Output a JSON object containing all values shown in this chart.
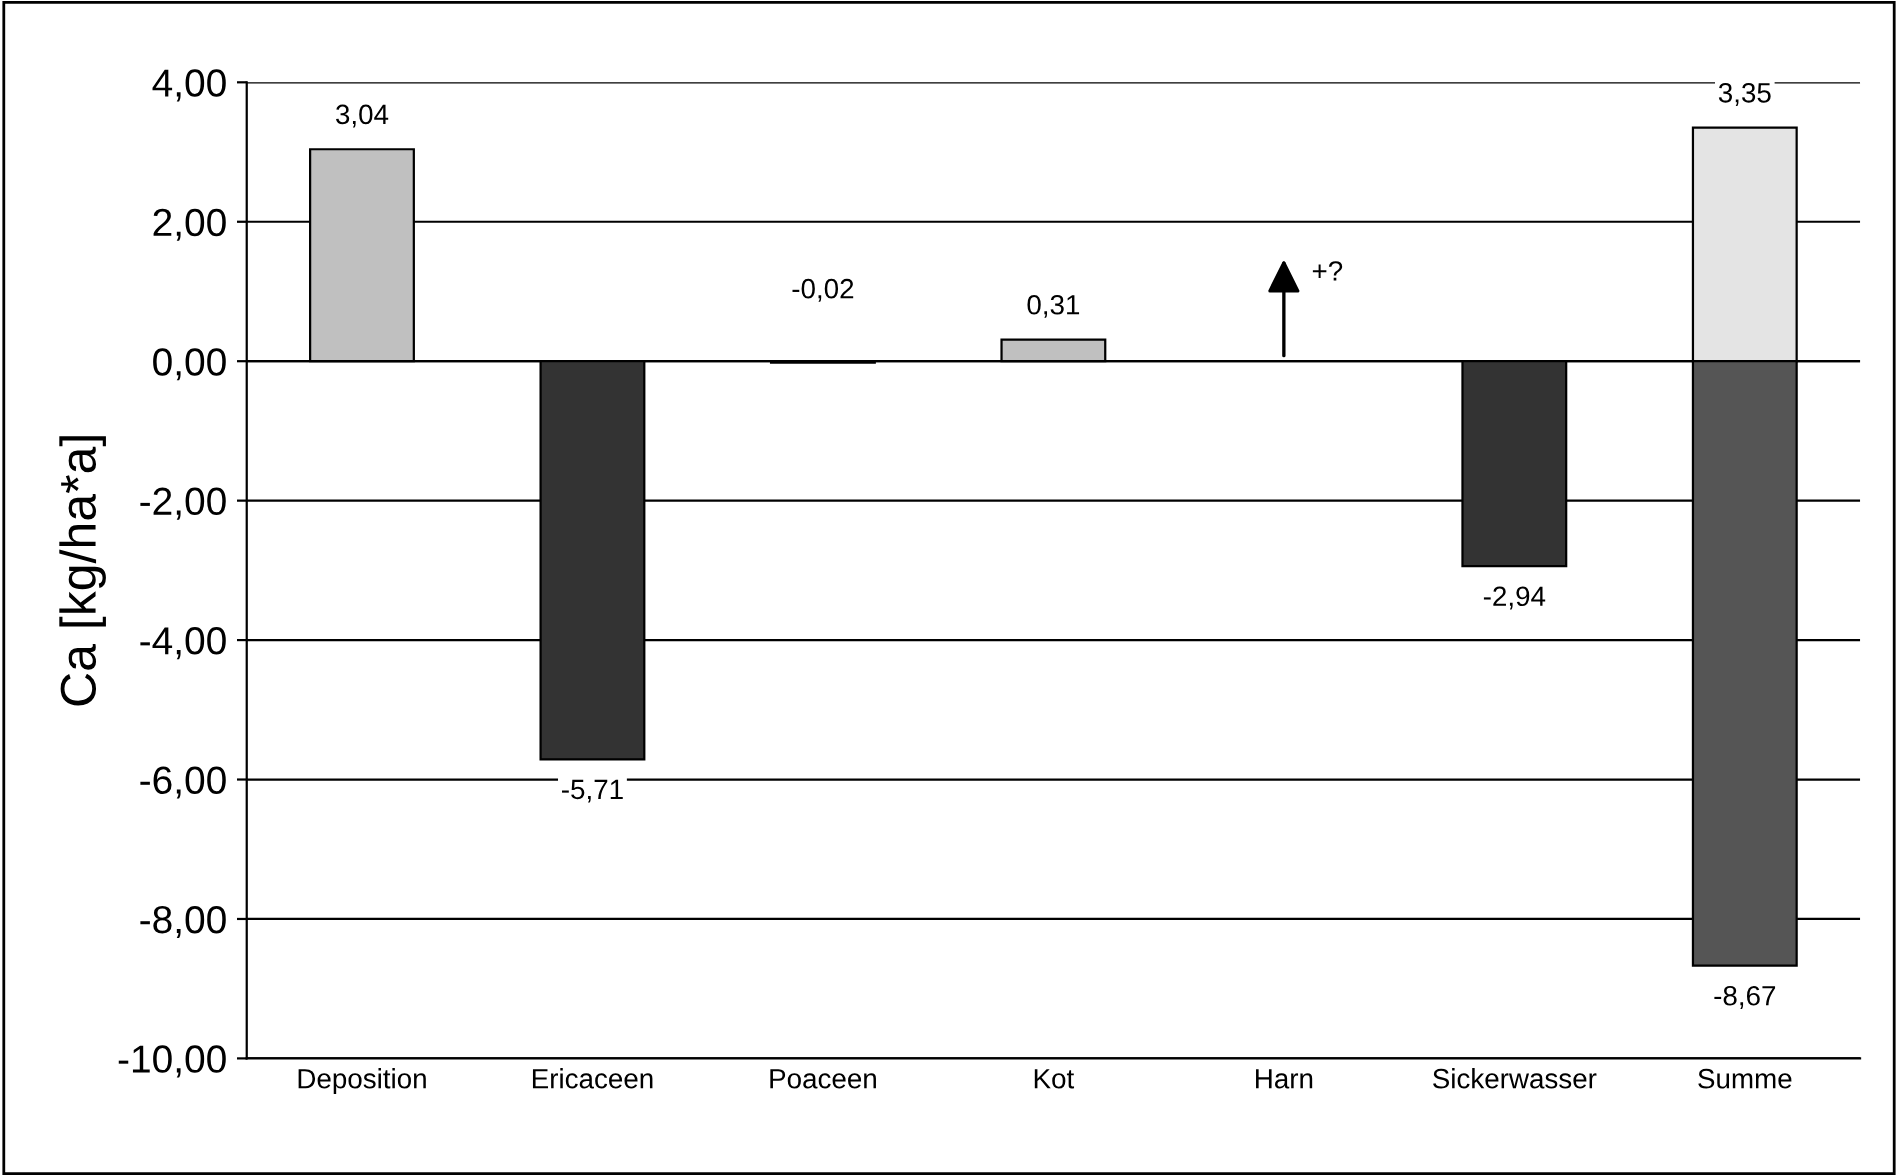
{
  "chart_data": {
    "type": "bar",
    "ylabel": "Ca [kg/ha*a]",
    "categories": [
      "Deposition",
      "Ericaceen",
      "Poaceen",
      "Kot",
      "Harn",
      "Sickerwasser",
      "Summe"
    ],
    "series": [
      {
        "colors": [
          "#c0c0c0",
          "#333333",
          "#333333",
          "#c0c0c0",
          null,
          "#333333",
          "#e4e4e4"
        ],
        "values": [
          3.04,
          -5.71,
          -0.02,
          0.31,
          null,
          -2.94,
          3.35
        ],
        "value_labels": [
          "3,04",
          "-5,71",
          "-0,02",
          "0,31",
          null,
          "-2,94",
          "3,35"
        ]
      },
      {
        "colors": [
          null,
          null,
          null,
          null,
          null,
          null,
          "#555555"
        ],
        "values": [
          null,
          null,
          null,
          null,
          null,
          null,
          -8.67
        ],
        "value_labels": [
          null,
          null,
          null,
          null,
          null,
          null,
          "-8,67"
        ]
      }
    ],
    "ylim": [
      -10,
      4
    ],
    "yticks": [
      {
        "value": -10,
        "label": "-10,00"
      },
      {
        "value": -8,
        "label": "-8,00"
      },
      {
        "value": -6,
        "label": "-6,00"
      },
      {
        "value": -4,
        "label": "-4,00"
      },
      {
        "value": -2,
        "label": "-2,00"
      },
      {
        "value": 0,
        "label": "0,00"
      },
      {
        "value": 2,
        "label": "2,00"
      },
      {
        "value": 4,
        "label": "4,00"
      }
    ],
    "grid": "y",
    "annotations": [
      "+?"
    ]
  }
}
